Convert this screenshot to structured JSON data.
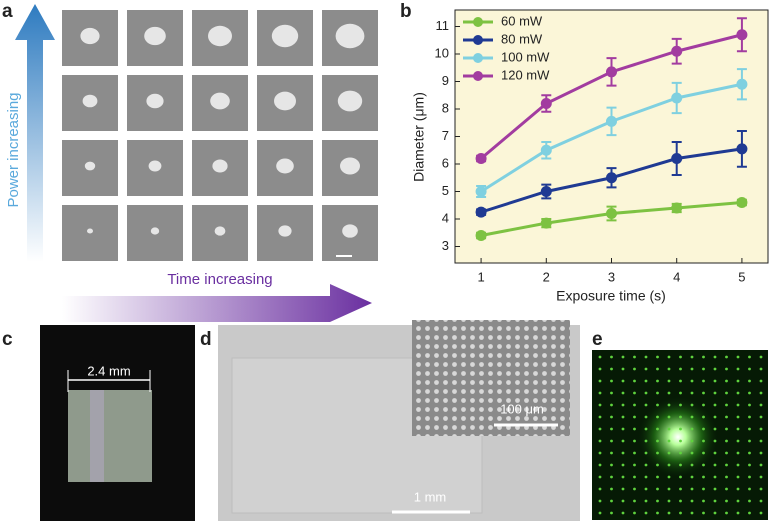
{
  "panel_labels": [
    "a",
    "b",
    "c",
    "d",
    "e"
  ],
  "panel_a": {
    "y_arrow_label": "Power increasing",
    "x_arrow_label": "Time increasing"
  },
  "panel_c": {
    "scale_label": "2.4 mm"
  },
  "panel_d": {
    "inset_scale_label": "100 μm",
    "scale_label": "1 mm"
  },
  "chart_data": {
    "type": "line",
    "x_label": "Exposure time (s)",
    "y_label": "Diameter (μm)",
    "x": [
      1,
      2,
      3,
      4,
      5
    ],
    "xlim": [
      0.6,
      5.4
    ],
    "xticks": [
      1,
      2,
      3,
      4,
      5
    ],
    "ylim": [
      2.4,
      11.6
    ],
    "yticks": [
      3,
      4,
      5,
      6,
      7,
      8,
      9,
      10,
      11
    ],
    "legend": "upper left",
    "series": [
      {
        "name": "60 mW",
        "color": "#7dc242",
        "values": [
          3.4,
          3.85,
          4.2,
          4.4,
          4.6
        ],
        "errors": [
          0.1,
          0.15,
          0.25,
          0.15,
          0.1
        ]
      },
      {
        "name": "80 mW",
        "color": "#1f3a93",
        "values": [
          4.25,
          5.0,
          5.5,
          6.2,
          6.55
        ],
        "errors": [
          0.1,
          0.25,
          0.35,
          0.6,
          0.65
        ]
      },
      {
        "name": "100 mW",
        "color": "#7fd0e0",
        "values": [
          5.0,
          6.5,
          7.55,
          8.4,
          8.9
        ],
        "errors": [
          0.2,
          0.3,
          0.5,
          0.55,
          0.55
        ]
      },
      {
        "name": "120 mW",
        "color": "#a23ca0",
        "values": [
          6.2,
          8.2,
          9.35,
          10.1,
          10.7
        ],
        "errors": [
          0.1,
          0.3,
          0.5,
          0.45,
          0.6
        ]
      }
    ]
  }
}
